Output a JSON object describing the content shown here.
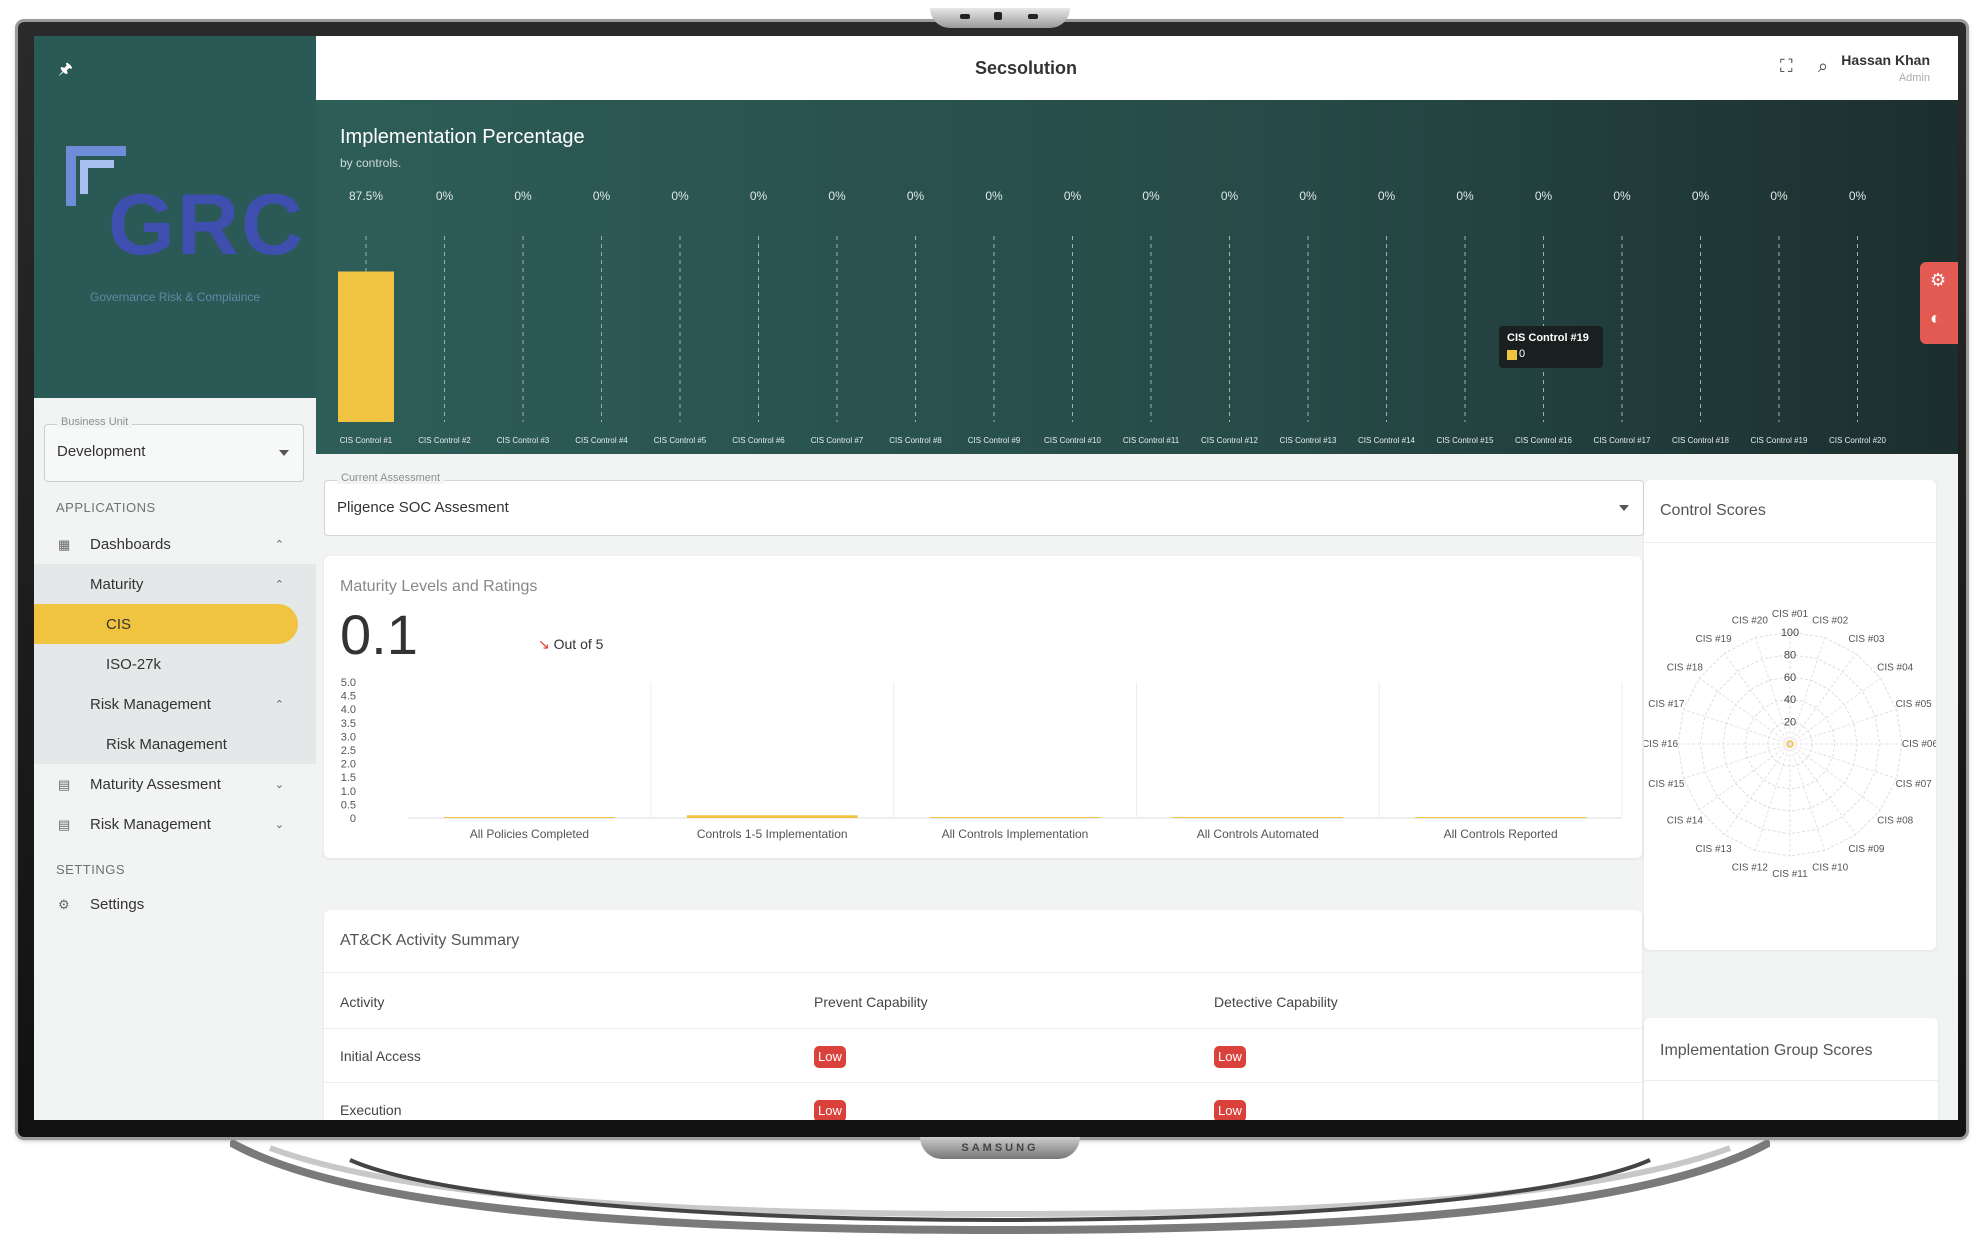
{
  "app": {
    "title": "Secsolution"
  },
  "user": {
    "name": "Hassan Khan",
    "role": "Admin"
  },
  "logo": {
    "text": "GRC",
    "subtitle": "Governance  Risk & Complaince"
  },
  "business_unit": {
    "label": "Business Unit",
    "value": "Development"
  },
  "nav": {
    "applications_label": "APPLICATIONS",
    "settings_label": "SETTINGS",
    "dashboards": "Dashboards",
    "maturity": "Maturity",
    "cis": "CIS",
    "iso": "ISO-27k",
    "risk_management_group": "Risk Management",
    "risk_management_item": "Risk Management",
    "maturity_assesment": "Maturity Assesment",
    "risk_management": "Risk Management",
    "settings": "Settings"
  },
  "banner": {
    "title": "Implementation Percentage",
    "subtitle": "by controls."
  },
  "tooltip": {
    "title": "CIS Control #19",
    "value": "0"
  },
  "assessment": {
    "label": "Current Assessment",
    "value": "Pligence SOC Assesment"
  },
  "maturity_card": {
    "title": "Maturity Levels and Ratings",
    "value": "0.1",
    "trend_text": "Out of 5"
  },
  "control_scores": {
    "title": "Control Scores"
  },
  "attack": {
    "title": "AT&CK Activity Summary",
    "headers": [
      "Activity",
      "Prevent Capability",
      "Detective Capability"
    ],
    "rows": [
      {
        "activity": "Initial Access",
        "prevent": "Low",
        "detective": "Low"
      },
      {
        "activity": "Execution",
        "prevent": "Low",
        "detective": "Low"
      }
    ]
  },
  "implementation_group": {
    "title": "Implementation Group Scores"
  },
  "colors": {
    "accent": "#f0c340",
    "sidebar_dark": "#2b5a56",
    "danger": "#d9413a"
  },
  "chart_data": [
    {
      "type": "bar",
      "title": "Implementation Percentage",
      "subtitle": "by controls.",
      "categories": [
        "CIS Control #1",
        "CIS Control #2",
        "CIS Control #3",
        "CIS Control #4",
        "CIS Control #5",
        "CIS Control #6",
        "CIS Control #7",
        "CIS Control #8",
        "CIS Control #9",
        "CIS Control #10",
        "CIS Control #11",
        "CIS Control #12",
        "CIS Control #13",
        "CIS Control #14",
        "CIS Control #15",
        "CIS Control #16",
        "CIS Control #17",
        "CIS Control #18",
        "CIS Control #19",
        "CIS Control #20"
      ],
      "values": [
        87.5,
        0,
        0,
        0,
        0,
        0,
        0,
        0,
        0,
        0,
        0,
        0,
        0,
        0,
        0,
        0,
        0,
        0,
        0,
        0
      ],
      "value_labels": [
        "87.5%",
        "0%",
        "0%",
        "0%",
        "0%",
        "0%",
        "0%",
        "0%",
        "0%",
        "0%",
        "0%",
        "0%",
        "0%",
        "0%",
        "0%",
        "0%",
        "0%",
        "0%",
        "0%",
        "0%"
      ],
      "ylim": [
        0,
        100
      ]
    },
    {
      "type": "bar",
      "title": "Maturity Levels and Ratings",
      "categories": [
        "All Policies Completed",
        "Controls 1-5 Implementation",
        "All Controls Implementation",
        "All Controls Automated",
        "All Controls Reported"
      ],
      "values": [
        0,
        0.1,
        0,
        0,
        0
      ],
      "ylim": [
        0,
        5
      ],
      "yticks": [
        "0",
        "0.5",
        "1.0",
        "1.5",
        "2.0",
        "2.5",
        "3.0",
        "3.5",
        "4.0",
        "4.5",
        "5.0"
      ]
    },
    {
      "type": "radar",
      "title": "Control Scores",
      "categories": [
        "CIS #01",
        "CIS #02",
        "CIS #03",
        "CIS #04",
        "CIS #05",
        "CIS #06",
        "CIS #07",
        "CIS #08",
        "CIS #09",
        "CIS #10",
        "CIS #11",
        "CIS #12",
        "CIS #13",
        "CIS #14",
        "CIS #15",
        "CIS #16",
        "CIS #17",
        "CIS #18",
        "CIS #19",
        "CIS #20"
      ],
      "values": [
        0,
        0,
        0,
        0,
        0,
        0,
        0,
        0,
        0,
        0,
        0,
        0,
        0,
        0,
        0,
        0,
        0,
        0,
        0,
        0
      ],
      "ylim": [
        0,
        100
      ],
      "rticks": [
        "20",
        "40",
        "60",
        "80",
        "100"
      ]
    }
  ]
}
